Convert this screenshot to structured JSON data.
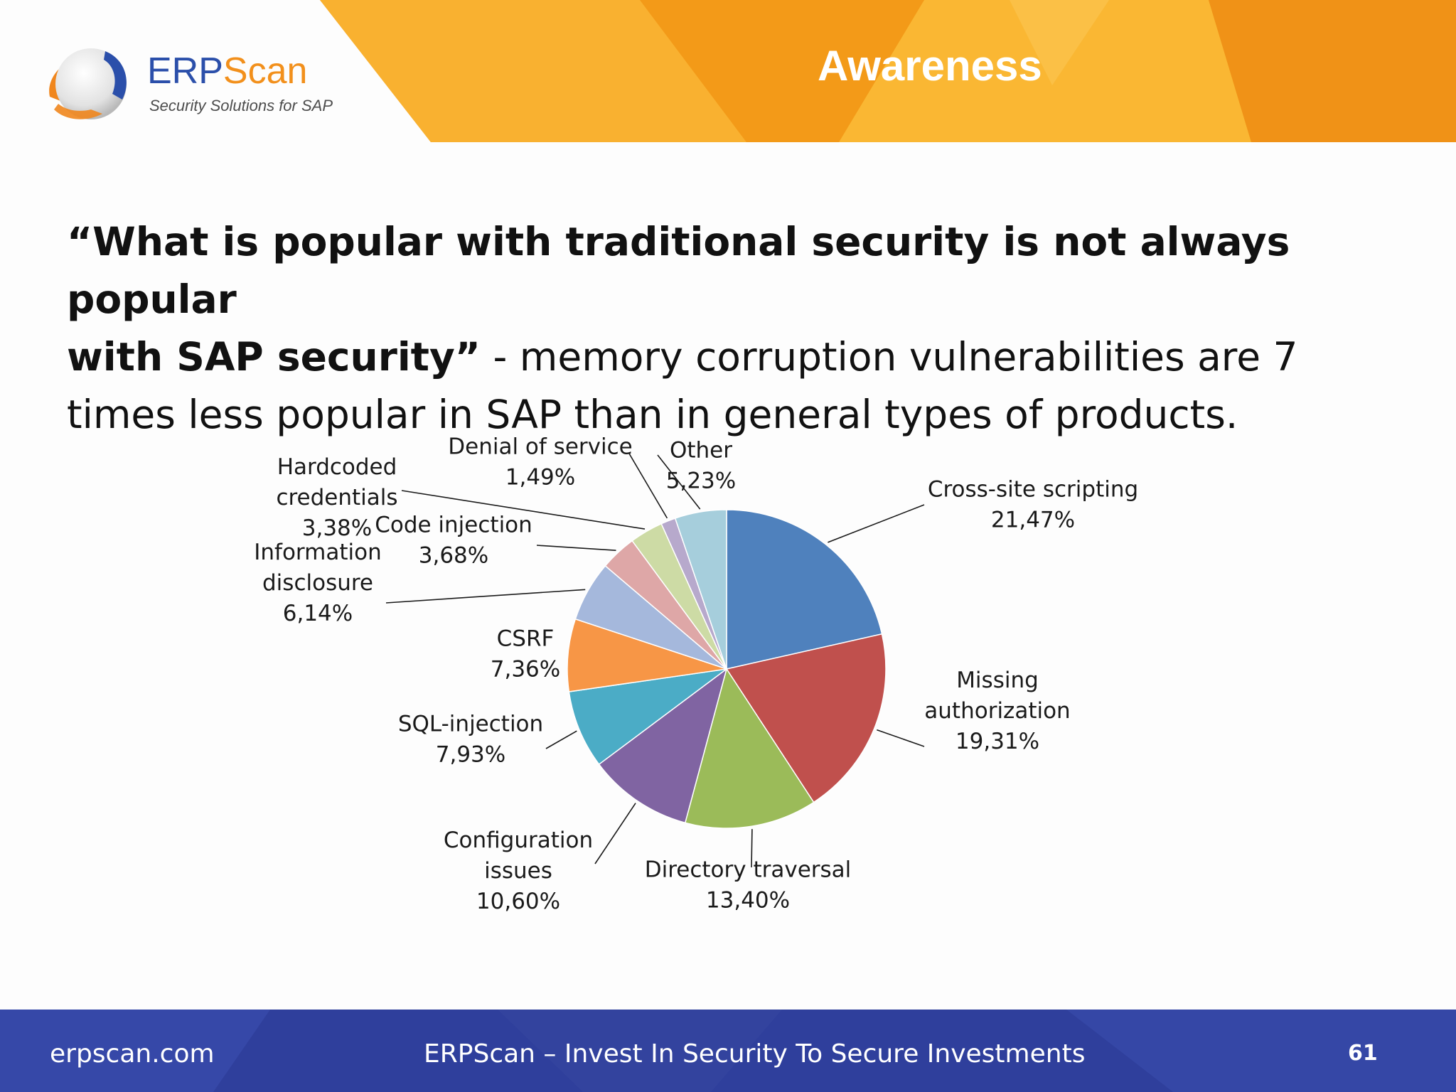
{
  "header": {
    "title": "Awareness",
    "logo_name_part1": "ERP",
    "logo_name_part2": "Scan",
    "logo_tagline": "Security Solutions for SAP",
    "colors": {
      "banner": "#f6a21c",
      "banner_light": "#fbbd3b",
      "banner_dark": "#ee8c15"
    }
  },
  "statement": {
    "quote_line1": "“What is popular with traditional security is not always popular",
    "quote_line2": "with SAP security”",
    "rest_line2": " - memory corruption vulnerabilities are 7",
    "line3": "times less popular in SAP than in general types of products."
  },
  "chart_data": {
    "type": "pie",
    "start_angle": "12 o'clock, clockwise",
    "slices": [
      {
        "label_lines": [
          "Cross-site scripting"
        ],
        "value": 21.47,
        "value_text": "21,47%",
        "color": "#4f81bd"
      },
      {
        "label_lines": [
          "Missing",
          "authorization"
        ],
        "value": 19.31,
        "value_text": "19,31%",
        "color": "#c0504d"
      },
      {
        "label_lines": [
          "Directory traversal"
        ],
        "value": 13.4,
        "value_text": "13,40%",
        "color": "#9bbb59"
      },
      {
        "label_lines": [
          "Configuration",
          "issues"
        ],
        "value": 10.6,
        "value_text": "10,60%",
        "color": "#8064a2"
      },
      {
        "label_lines": [
          "SQL-injection"
        ],
        "value": 7.93,
        "value_text": "7,93%",
        "color": "#4bacc6"
      },
      {
        "label_lines": [
          "CSRF"
        ],
        "value": 7.36,
        "value_text": "7,36%",
        "color": "#f79646"
      },
      {
        "label_lines": [
          "Information",
          "disclosure"
        ],
        "value": 6.14,
        "value_text": "6,14%",
        "color": "#a5b8dc"
      },
      {
        "label_lines": [
          "Code injection"
        ],
        "value": 3.68,
        "value_text": "3,68%",
        "color": "#dea7a7"
      },
      {
        "label_lines": [
          "Hardcoded",
          "credentials"
        ],
        "value": 3.38,
        "value_text": "3,38%",
        "color": "#cddba5"
      },
      {
        "label_lines": [
          "Denial of service"
        ],
        "value": 1.49,
        "value_text": "1,49%",
        "color": "#b7a9cc"
      },
      {
        "label_lines": [
          "Other"
        ],
        "value": 5.23,
        "value_text": "5,23%",
        "color": "#a6cedc"
      }
    ]
  },
  "footer": {
    "url": "erpscan.com",
    "slogan": "ERPScan – Invest In Security To Secure Investments",
    "page_number": "61",
    "colors": {
      "bg": "#2f3f9c",
      "bg_light": "#3c4fb0"
    }
  }
}
